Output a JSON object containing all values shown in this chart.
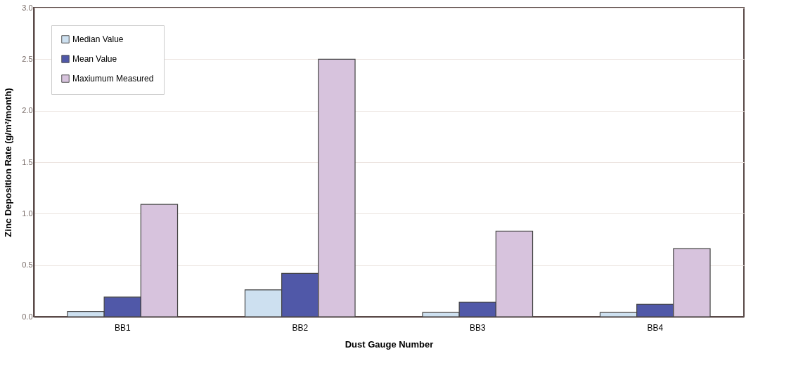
{
  "chart_data": {
    "type": "bar",
    "xlabel": "Dust Gauge Number",
    "ylabel": "Zinc Deposition Rate (g/m²/month)",
    "categories": [
      "BB1",
      "BB2",
      "BB3",
      "BB4"
    ],
    "series": [
      {
        "name": "Median Value",
        "color": "#cde0f0",
        "values": [
          0.05,
          0.26,
          0.04,
          0.04
        ]
      },
      {
        "name": "Mean Value",
        "color": "#5058a8",
        "values": [
          0.19,
          0.42,
          0.14,
          0.12
        ]
      },
      {
        "name": "Maxiumum Measured",
        "color": "#d7c3dd",
        "values": [
          1.09,
          2.5,
          0.83,
          0.66
        ]
      }
    ],
    "ylim": [
      0,
      3.0
    ],
    "yticks": [
      {
        "value": 0,
        "label": "0.0"
      },
      {
        "value": 0.5,
        "label": "0.5"
      },
      {
        "value": 1,
        "label": "1.0"
      },
      {
        "value": 1.5,
        "label": "1.5"
      },
      {
        "value": 2,
        "label": "2.0"
      },
      {
        "value": 2.5,
        "label": "2.5"
      },
      {
        "value": 3,
        "label": "3.0"
      }
    ],
    "grid": "y",
    "legend": "top left"
  }
}
